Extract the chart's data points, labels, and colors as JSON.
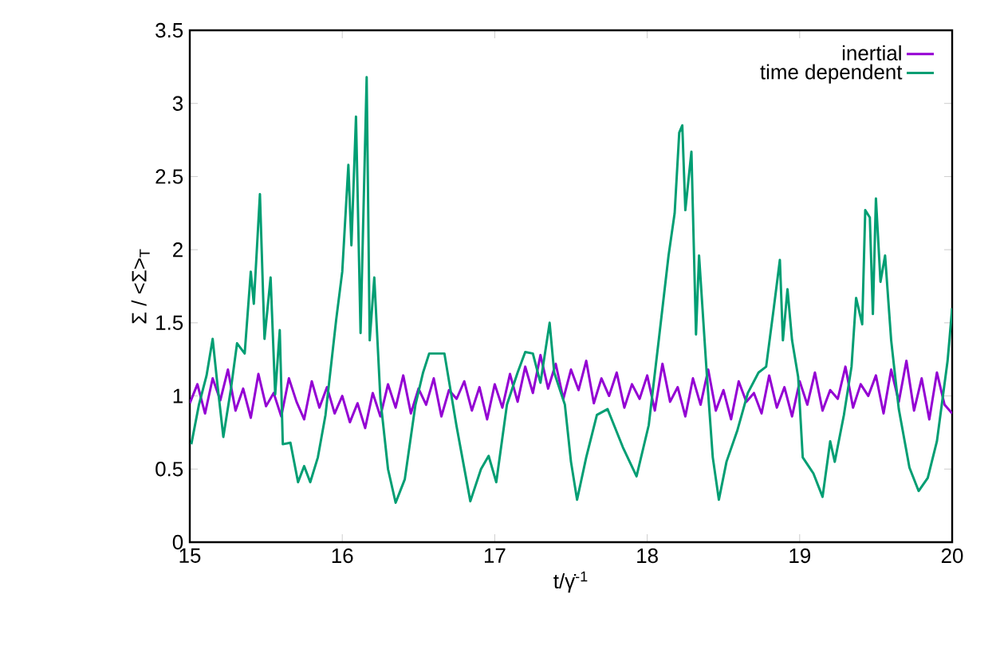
{
  "chart_data": {
    "type": "line",
    "xlabel": "t/γ̇$^{-1}$",
    "ylabel": "Σ / <Σ>$_{T}$",
    "xlim": [
      15,
      20
    ],
    "ylim": [
      0,
      3.5
    ],
    "xticks": [
      15,
      16,
      17,
      18,
      19,
      20
    ],
    "yticks": [
      0,
      0.5,
      1,
      1.5,
      2,
      2.5,
      3,
      3.5
    ],
    "grid": false,
    "legend": "top right",
    "marker": "none",
    "line_style": "solid",
    "series": [
      {
        "name": "inertial",
        "color": "#9400d3",
        "x": [
          15.0,
          15.05,
          15.1,
          15.15,
          15.2,
          15.25,
          15.3,
          15.35,
          15.4,
          15.45,
          15.5,
          15.55,
          15.6,
          15.65,
          15.7,
          15.75,
          15.8,
          15.85,
          15.9,
          15.95,
          16.0,
          16.05,
          16.1,
          16.15,
          16.2,
          16.25,
          16.3,
          16.35,
          16.4,
          16.45,
          16.5,
          16.55,
          16.6,
          16.65,
          16.7,
          16.75,
          16.8,
          16.85,
          16.9,
          16.95,
          17.0,
          17.05,
          17.1,
          17.15,
          17.2,
          17.25,
          17.3,
          17.35,
          17.4,
          17.45,
          17.5,
          17.55,
          17.6,
          17.65,
          17.7,
          17.75,
          17.8,
          17.85,
          17.9,
          17.95,
          18.0,
          18.05,
          18.1,
          18.15,
          18.2,
          18.25,
          18.3,
          18.35,
          18.4,
          18.45,
          18.5,
          18.55,
          18.6,
          18.65,
          18.7,
          18.75,
          18.8,
          18.85,
          18.9,
          18.95,
          19.0,
          19.05,
          19.1,
          19.15,
          19.2,
          19.25,
          19.3,
          19.35,
          19.4,
          19.45,
          19.5,
          19.55,
          19.6,
          19.65,
          19.7,
          19.75,
          19.8,
          19.85,
          19.9,
          19.95,
          20.0
        ],
        "values": [
          0.95,
          1.08,
          0.88,
          1.12,
          0.97,
          1.18,
          0.9,
          1.05,
          0.85,
          1.15,
          0.93,
          1.02,
          0.86,
          1.12,
          0.96,
          0.84,
          1.1,
          0.92,
          1.06,
          0.88,
          1.0,
          0.82,
          0.95,
          0.78,
          1.02,
          0.86,
          1.08,
          0.92,
          1.14,
          0.88,
          1.05,
          0.94,
          1.12,
          0.86,
          1.04,
          0.98,
          1.1,
          0.9,
          1.06,
          0.84,
          1.08,
          0.92,
          1.15,
          0.96,
          1.2,
          1.02,
          1.28,
          1.05,
          1.22,
          0.98,
          1.18,
          1.04,
          1.24,
          0.95,
          1.12,
          1.0,
          1.16,
          0.92,
          1.08,
          0.98,
          1.14,
          0.9,
          1.22,
          0.96,
          1.06,
          0.86,
          1.12,
          0.94,
          1.18,
          0.9,
          1.04,
          0.84,
          1.1,
          0.96,
          1.02,
          0.88,
          1.14,
          0.92,
          1.06,
          0.86,
          1.1,
          0.94,
          1.16,
          0.9,
          1.04,
          0.98,
          1.2,
          0.92,
          1.08,
          1.0,
          1.14,
          0.88,
          1.18,
          0.96,
          1.24,
          0.9,
          1.12,
          0.84,
          1.16,
          0.94,
          0.88
        ]
      },
      {
        "name": "time dependent",
        "color": "#009e73",
        "x": [
          15.01,
          15.06,
          15.11,
          15.15,
          15.18,
          15.22,
          15.27,
          15.31,
          15.36,
          15.4,
          15.42,
          15.46,
          15.49,
          15.53,
          15.56,
          15.59,
          15.61,
          15.66,
          15.71,
          15.75,
          15.79,
          15.84,
          15.89,
          15.96,
          16.0,
          16.04,
          16.06,
          16.09,
          16.12,
          16.16,
          16.18,
          16.21,
          16.25,
          16.3,
          16.35,
          16.41,
          16.48,
          16.53,
          16.57,
          16.67,
          16.75,
          16.84,
          16.91,
          16.96,
          17.01,
          17.08,
          17.15,
          17.2,
          17.25,
          17.3,
          17.36,
          17.39,
          17.46,
          17.5,
          17.54,
          17.6,
          17.67,
          17.74,
          17.84,
          17.93,
          18.01,
          18.08,
          18.14,
          18.18,
          18.21,
          18.23,
          18.25,
          18.29,
          18.32,
          18.34,
          18.39,
          18.43,
          18.47,
          18.52,
          18.59,
          18.66,
          18.73,
          18.78,
          18.83,
          18.87,
          18.89,
          18.92,
          18.95,
          18.99,
          19.02,
          19.09,
          19.15,
          19.2,
          19.23,
          19.29,
          19.34,
          19.37,
          19.41,
          19.43,
          19.46,
          19.48,
          19.5,
          19.53,
          19.56,
          19.6,
          19.65,
          19.72,
          19.78,
          19.84,
          19.9,
          19.97,
          20.0
        ],
        "values": [
          0.67,
          0.94,
          1.14,
          1.39,
          1.09,
          0.72,
          1.05,
          1.36,
          1.29,
          1.85,
          1.63,
          2.38,
          1.39,
          1.81,
          1.01,
          1.45,
          0.67,
          0.68,
          0.41,
          0.52,
          0.41,
          0.58,
          0.87,
          1.52,
          1.85,
          2.58,
          2.03,
          2.91,
          1.43,
          3.18,
          1.38,
          1.81,
          0.98,
          0.5,
          0.27,
          0.43,
          0.94,
          1.16,
          1.29,
          1.29,
          0.79,
          0.28,
          0.5,
          0.59,
          0.41,
          0.94,
          1.16,
          1.3,
          1.29,
          1.09,
          1.5,
          1.16,
          0.94,
          0.55,
          0.29,
          0.58,
          0.87,
          0.91,
          0.65,
          0.45,
          0.8,
          1.42,
          1.96,
          2.25,
          2.8,
          2.85,
          2.27,
          2.67,
          1.42,
          1.96,
          1.16,
          0.58,
          0.29,
          0.55,
          0.76,
          1.02,
          1.16,
          1.2,
          1.6,
          1.93,
          1.38,
          1.73,
          1.38,
          1.13,
          0.58,
          0.47,
          0.31,
          0.69,
          0.55,
          0.87,
          1.2,
          1.67,
          1.49,
          2.27,
          2.22,
          1.56,
          2.35,
          1.78,
          1.96,
          1.38,
          0.91,
          0.51,
          0.35,
          0.44,
          0.69,
          1.24,
          1.6
        ]
      }
    ]
  }
}
